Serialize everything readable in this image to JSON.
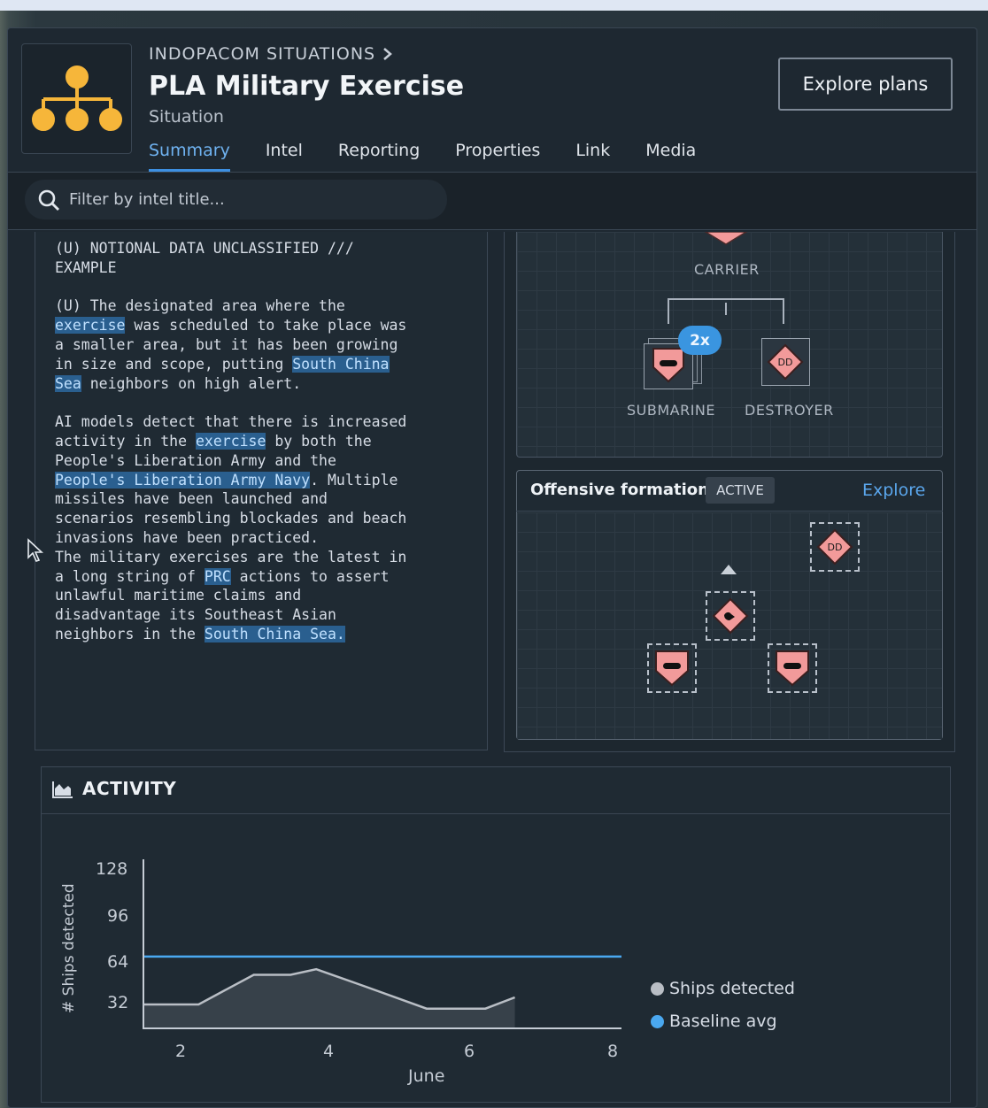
{
  "header": {
    "breadcrumb": "INDOPACOM SITUATIONS",
    "title": "PLA Military Exercise",
    "subtitle": "Situation",
    "explore_plans_label": "Explore plans"
  },
  "tabs": [
    {
      "label": "Summary",
      "active": true
    },
    {
      "label": "Intel"
    },
    {
      "label": "Reporting"
    },
    {
      "label": "Properties"
    },
    {
      "label": "Link"
    },
    {
      "label": "Media"
    }
  ],
  "filter": {
    "placeholder": "Filter by intel title..."
  },
  "intel": {
    "classification_line1": "(U) NOTIONAL DATA UNCLASSIFIED ///",
    "classification_line2": "EXAMPLE",
    "highlights": [
      "exercise",
      "South China",
      "Sea",
      "exercise",
      "People's Liberation Army Navy",
      "PRC",
      "South China Sea."
    ]
  },
  "org": {
    "carrier_label": "CARRIER",
    "count_badge": "2x",
    "submarine_label": "SUBMARINE",
    "destroyer_label": "DESTROYER",
    "destroyer_symbol": "DD"
  },
  "formation": {
    "title": "Offensive formation",
    "status": "ACTIVE",
    "explore_label": "Explore",
    "destroyer_symbol": "DD"
  },
  "activity": {
    "title": "ACTIVITY",
    "icon": "area-chart-icon"
  },
  "colors": {
    "accent": "#3d8fe0",
    "highlight": "#2a5f8f",
    "unit_fill": "#f29a9a",
    "ships_series": "#b9bec5",
    "baseline_series": "#4aa8f0"
  },
  "chart_data": {
    "type": "line",
    "xlabel": "June",
    "ylabel": "# Ships detected",
    "xlim": [
      1.5,
      8
    ],
    "ylim": [
      16,
      136
    ],
    "xticks": [
      "2",
      "4",
      "6",
      "8"
    ],
    "yticks": [
      "32",
      "64",
      "96",
      "128"
    ],
    "series": [
      {
        "name": "Ships detected",
        "color": "#b9bec5",
        "area": true,
        "x": [
          1.5,
          2.25,
          3.0,
          3.5,
          3.85,
          4.5,
          5.35,
          6.15,
          6.55
        ],
        "y": [
          33,
          33,
          54,
          54,
          58,
          46,
          30,
          30,
          38
        ]
      },
      {
        "name": "Baseline avg",
        "color": "#4aa8f0",
        "area": false,
        "x": [
          1.5,
          8
        ],
        "y": [
          67,
          67
        ]
      }
    ]
  }
}
